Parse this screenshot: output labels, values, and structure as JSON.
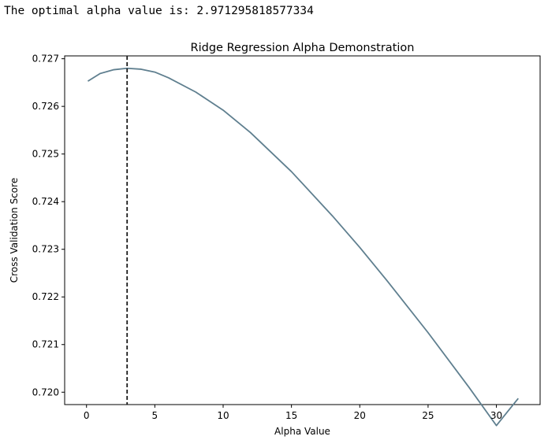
{
  "output": {
    "text": "The optimal alpha value is: 2.971295818577334"
  },
  "chart_data": {
    "type": "line",
    "title": "Ridge Regression Alpha Demonstration",
    "xlabel": "Alpha Value",
    "ylabel": "Cross Validation Score",
    "xlim": [
      -1.6,
      33.2
    ],
    "ylim": [
      0.71974,
      0.72706
    ],
    "xticks": [
      0,
      5,
      10,
      15,
      20,
      25,
      30
    ],
    "yticks": [
      0.72,
      0.721,
      0.722,
      0.723,
      0.724,
      0.725,
      0.726,
      0.727
    ],
    "ytick_labels": [
      "0.720",
      "0.721",
      "0.722",
      "0.723",
      "0.724",
      "0.725",
      "0.726",
      "0.727"
    ],
    "grid": false,
    "series": [
      {
        "color": "#5f7f8f",
        "x": [
          0.1,
          1,
          2,
          2.97,
          4,
          5,
          6,
          8,
          10,
          12,
          15,
          18,
          20,
          22,
          25,
          28,
          30,
          31.6
        ],
        "y": [
          0.72653,
          0.72669,
          0.72677,
          0.7268,
          0.72678,
          0.72672,
          0.7266,
          0.7263,
          0.72592,
          0.72545,
          0.72463,
          0.7237,
          0.72304,
          0.72234,
          0.72125,
          0.7201,
          0.7193,
          0.71987
        ]
      }
    ],
    "vline": {
      "x": 2.971295818577334,
      "style": "dashed",
      "color": "#1a1a1a"
    }
  }
}
